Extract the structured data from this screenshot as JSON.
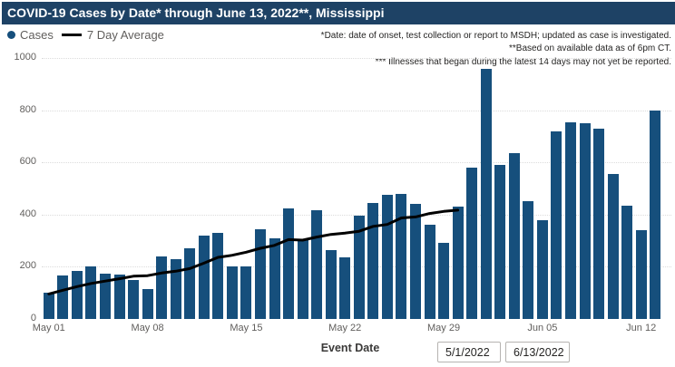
{
  "header": {
    "title": "COVID-19 Cases by Date* through June 13, 2022**, Mississippi"
  },
  "legend": {
    "cases_label": "Cases",
    "avg_label": "7 Day Average"
  },
  "annotations": {
    "line1": "*Date: date of onset, test collection or report to MSDH; updated as case is investigated.",
    "line2": "**Based on available data as of 6pm CT.",
    "line3": "*** Illnesses that began during the latest 14 days may not yet be reported."
  },
  "axis": {
    "y_ticks": [
      0,
      200,
      400,
      600,
      800,
      1000
    ],
    "x_ticks": [
      "May 01",
      "May 08",
      "May 15",
      "May 22",
      "May 29",
      "Jun 05",
      "Jun 12"
    ],
    "x_tick_indices": [
      0,
      7,
      14,
      21,
      28,
      35,
      42
    ],
    "x_label": "Event Date"
  },
  "filters": {
    "start_date": "5/1/2022",
    "end_date": "6/13/2022"
  },
  "colors": {
    "header_bg": "#1e4265",
    "title_text": "#ffffff",
    "bar": "#164f7c",
    "avg_line": "#000000",
    "grid": "#dcdcdc",
    "axis_text": "#605e5c",
    "note_text": "#252423"
  },
  "chart_data": {
    "type": "bar",
    "title": "COVID-19 Cases by Date* through June 13, 2022**, Mississippi",
    "xlabel": "Event Date",
    "ylabel": "",
    "ylim": [
      0,
      1000
    ],
    "grid": "dotted-horizontal",
    "legend_position": "top-left",
    "categories": [
      "May 01",
      "May 02",
      "May 03",
      "May 04",
      "May 05",
      "May 06",
      "May 07",
      "May 08",
      "May 09",
      "May 10",
      "May 11",
      "May 12",
      "May 13",
      "May 14",
      "May 15",
      "May 16",
      "May 17",
      "May 18",
      "May 19",
      "May 20",
      "May 21",
      "May 22",
      "May 23",
      "May 24",
      "May 25",
      "May 26",
      "May 27",
      "May 28",
      "May 29",
      "May 30",
      "May 31",
      "Jun 01",
      "Jun 02",
      "Jun 03",
      "Jun 04",
      "Jun 05",
      "Jun 06",
      "Jun 07",
      "Jun 08",
      "Jun 09",
      "Jun 10",
      "Jun 11",
      "Jun 12",
      "Jun 13"
    ],
    "series": [
      {
        "name": "Cases",
        "type": "bar",
        "values": [
          100,
          165,
          185,
          200,
          175,
          170,
          150,
          115,
          240,
          230,
          270,
          320,
          330,
          200,
          200,
          345,
          310,
          425,
          305,
          415,
          265,
          235,
          395,
          445,
          475,
          480,
          440,
          360,
          290,
          430,
          580,
          960,
          590,
          635,
          450,
          380,
          720,
          755,
          750,
          730,
          555,
          435,
          340,
          800
        ]
      },
      {
        "name": "7 Day Average",
        "type": "line",
        "values": [
          96,
          110,
          124,
          136,
          145,
          154,
          164,
          166,
          176,
          183,
          193,
          214,
          236,
          244,
          256,
          271,
          282,
          304,
          302,
          314,
          324,
          329,
          336,
          355,
          362,
          387,
          391,
          404,
          412,
          417,
          null,
          null,
          null,
          null,
          null,
          null,
          null,
          null,
          null,
          null,
          null,
          null,
          null,
          null
        ]
      }
    ]
  }
}
